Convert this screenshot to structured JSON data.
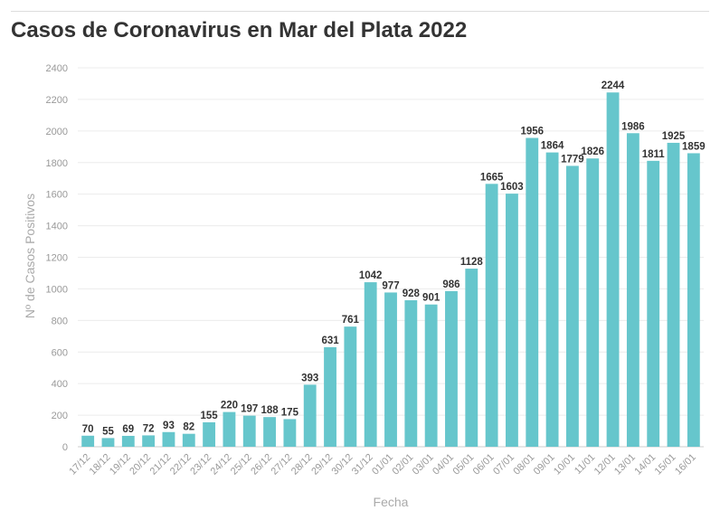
{
  "title": "Casos de Coronavirus en Mar del Plata 2022",
  "colors": {
    "bar": "#66c6cc",
    "grid": "#ececec",
    "axis": "#cccccc"
  },
  "chart_data": {
    "type": "bar",
    "title": "Casos de Coronavirus en Mar del Plata 2022",
    "xlabel": "Fecha",
    "ylabel": "Nº de Casos Positivos",
    "ylim": [
      0,
      2400
    ],
    "yticks": [
      0,
      200,
      400,
      600,
      800,
      1000,
      1200,
      1400,
      1600,
      1800,
      2000,
      2200,
      2400
    ],
    "grid": true,
    "categories": [
      "17/12",
      "18/12",
      "19/12",
      "20/12",
      "21/12",
      "22/12",
      "23/12",
      "24/12",
      "25/12",
      "26/12",
      "27/12",
      "28/12",
      "29/12",
      "30/12",
      "31/12",
      "01/01",
      "02/01",
      "03/01",
      "04/01",
      "05/01",
      "06/01",
      "07/01",
      "08/01",
      "09/01",
      "10/01",
      "11/01",
      "12/01",
      "13/01",
      "14/01",
      "15/01",
      "16/01"
    ],
    "values": [
      70,
      55,
      69,
      72,
      93,
      82,
      155,
      220,
      197,
      188,
      175,
      393,
      631,
      761,
      1042,
      977,
      928,
      901,
      986,
      1128,
      1665,
      1603,
      1956,
      1864,
      1779,
      1826,
      2244,
      1986,
      1811,
      1925,
      1859
    ]
  }
}
